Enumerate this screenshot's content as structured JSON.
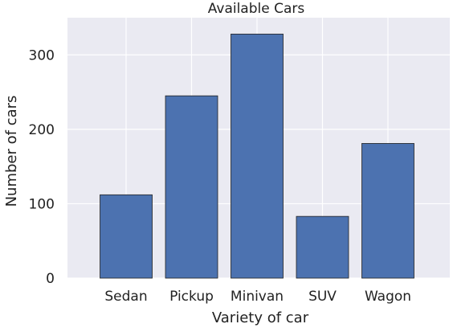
{
  "chart_data": {
    "type": "bar",
    "title": "Available Cars",
    "xlabel": "Variety of car",
    "ylabel": "Number of cars",
    "categories": [
      "Sedan",
      "Pickup",
      "Minivan",
      "SUV",
      "Wagon"
    ],
    "values": [
      112,
      245,
      328,
      83,
      181
    ],
    "ylim": [
      0,
      350
    ],
    "yticks": [
      0,
      100,
      200,
      300
    ],
    "grid": true,
    "colors": {
      "bar_fill": "#4c72b0",
      "bar_edge": "#222222",
      "plot_background": "#eaeaf2",
      "grid": "#ffffff"
    }
  }
}
